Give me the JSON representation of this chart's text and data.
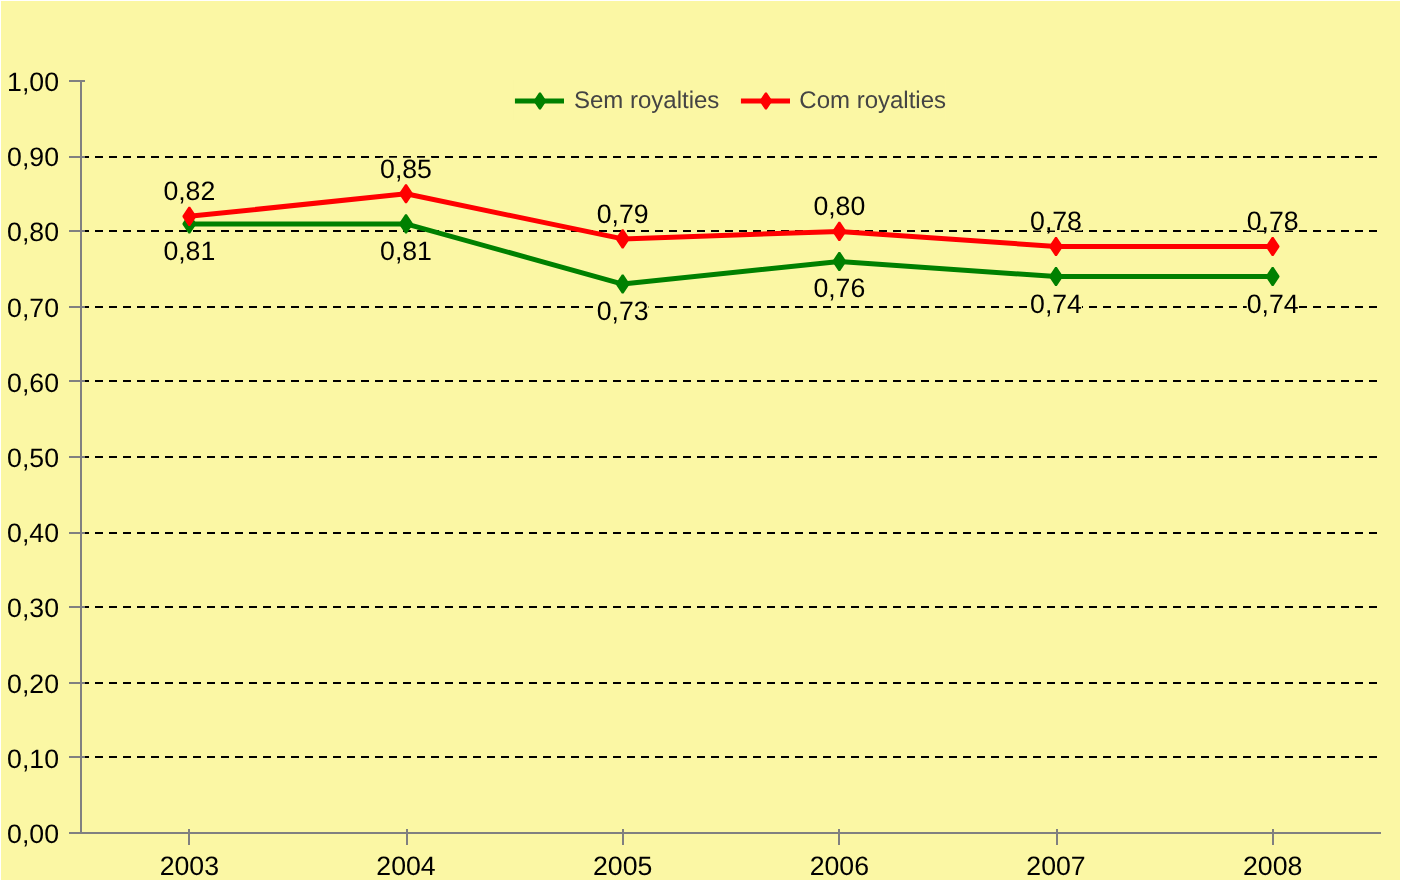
{
  "chart_data": {
    "type": "line",
    "categories": [
      "2003",
      "2004",
      "2005",
      "2006",
      "2007",
      "2008"
    ],
    "series": [
      {
        "name": "Sem royalties",
        "color": "#008000",
        "values": [
          0.81,
          0.81,
          0.73,
          0.76,
          0.74,
          0.74
        ],
        "value_labels": [
          "0,81",
          "0,81",
          "0,73",
          "0,76",
          "0,74",
          "0,74"
        ]
      },
      {
        "name": "Com royalties",
        "color": "#ff0000",
        "values": [
          0.82,
          0.85,
          0.79,
          0.8,
          0.78,
          0.78
        ],
        "value_labels": [
          "0,82",
          "0,85",
          "0,79",
          "0,80",
          "0,78",
          "0,78"
        ]
      }
    ],
    "ylim": [
      0,
      1.0
    ],
    "yticks": [
      {
        "value": 0,
        "label": "0,00"
      },
      {
        "value": 0.1,
        "label": "0,10"
      },
      {
        "value": 0.2,
        "label": "0,20"
      },
      {
        "value": 0.3,
        "label": "0,30"
      },
      {
        "value": 0.4,
        "label": "0,40"
      },
      {
        "value": 0.5,
        "label": "0,50"
      },
      {
        "value": 0.6,
        "label": "0,60"
      },
      {
        "value": 0.7,
        "label": "0,70"
      },
      {
        "value": 0.8,
        "label": "0,80"
      },
      {
        "value": 0.9,
        "label": "0,90"
      },
      {
        "value": 1.0,
        "label": "1,00"
      }
    ],
    "grid": "y",
    "legend": "top",
    "marker": "diamond"
  }
}
